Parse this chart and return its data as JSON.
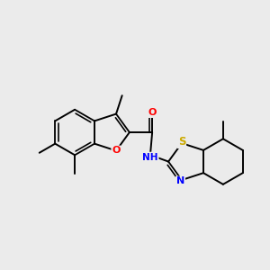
{
  "background_color": "#ebebeb",
  "bond_color": "#000000",
  "atom_colors": {
    "O": "#ff0000",
    "N": "#0000ff",
    "S": "#ccaa00",
    "C": "#000000",
    "H": "#000000"
  },
  "figsize": [
    3.0,
    3.0
  ],
  "dpi": 100
}
